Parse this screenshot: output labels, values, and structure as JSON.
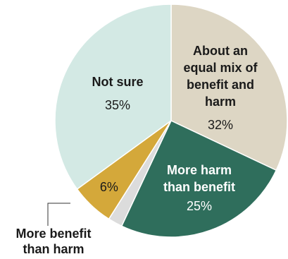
{
  "chart_data": {
    "type": "pie",
    "title": "",
    "slices": [
      {
        "name_lines": [
          "About an",
          "equal mix of",
          "benefit and",
          "harm"
        ],
        "value": 32,
        "value_label": "32%",
        "color": "#ddd6c4",
        "label_color": "#1a1a1a"
      },
      {
        "name_lines": [
          "More harm",
          "than benefit"
        ],
        "value": 25,
        "value_label": "25%",
        "color": "#2f6e5c",
        "label_color": "#ffffff"
      },
      {
        "name_lines": [],
        "value": 2,
        "value_label": "",
        "color": "#dcdcdc",
        "label_color": "#1a1a1a"
      },
      {
        "name_lines": [
          "More benefit",
          "than harm"
        ],
        "value": 6,
        "value_label": "6%",
        "color": "#d4a83a",
        "label_color": "#1a1a1a"
      },
      {
        "name_lines": [
          "Not sure"
        ],
        "value": 35,
        "value_label": "35%",
        "color": "#d3e9e4",
        "label_color": "#1a1a1a"
      }
    ]
  }
}
